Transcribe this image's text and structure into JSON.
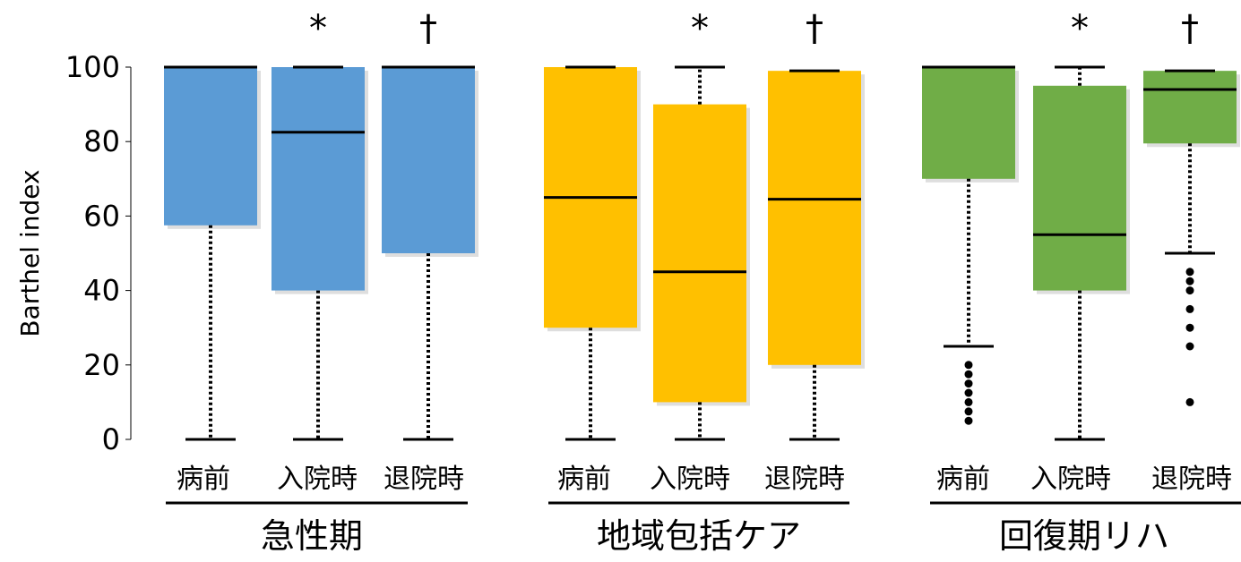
{
  "chart_data": {
    "type": "box",
    "ylabel": "Barthel index",
    "ylim": [
      0,
      100
    ],
    "yticks": [
      0,
      20,
      40,
      60,
      80,
      100
    ],
    "categories": [
      "病前",
      "入院時",
      "退院時"
    ],
    "groups": [
      {
        "name": "急性期",
        "color": "#5b9bd5",
        "boxes": [
          {
            "category": "病前",
            "min": 0,
            "q1": 57.5,
            "median": 100,
            "q3": 100,
            "max": 100,
            "outliers": [],
            "marker": ""
          },
          {
            "category": "入院時",
            "min": 0,
            "q1": 40,
            "median": 82.5,
            "q3": 100,
            "max": 100,
            "outliers": [],
            "marker": "*"
          },
          {
            "category": "退院時",
            "min": 0,
            "q1": 50,
            "median": 100,
            "q3": 100,
            "max": 100,
            "outliers": [],
            "marker": "†"
          }
        ]
      },
      {
        "name": "地域包括ケア",
        "color": "#ffc000",
        "boxes": [
          {
            "category": "病前",
            "min": 0,
            "q1": 30,
            "median": 65,
            "q3": 100,
            "max": 100,
            "outliers": [],
            "marker": ""
          },
          {
            "category": "入院時",
            "min": 0,
            "q1": 10,
            "median": 45,
            "q3": 90,
            "max": 100,
            "outliers": [],
            "marker": "*"
          },
          {
            "category": "退院時",
            "min": 0,
            "q1": 20,
            "median": 64.5,
            "q3": 99,
            "max": 99,
            "outliers": [],
            "marker": "†"
          }
        ]
      },
      {
        "name": "回復期リハ",
        "color": "#70ad47",
        "boxes": [
          {
            "category": "病前",
            "min": 25,
            "q1": 70,
            "median": 100,
            "q3": 100,
            "max": 100,
            "outliers": [
              20,
              17.5,
              15,
              12.5,
              10,
              7.5,
              5
            ],
            "marker": ""
          },
          {
            "category": "入院時",
            "min": 0,
            "q1": 40,
            "median": 55,
            "q3": 95,
            "max": 100,
            "outliers": [],
            "marker": "*"
          },
          {
            "category": "退院時",
            "min": 50,
            "q1": 79.5,
            "median": 94,
            "q3": 99,
            "max": 99,
            "outliers": [
              45,
              42.5,
              40,
              35,
              30,
              25,
              10
            ],
            "marker": "†"
          }
        ]
      }
    ]
  }
}
